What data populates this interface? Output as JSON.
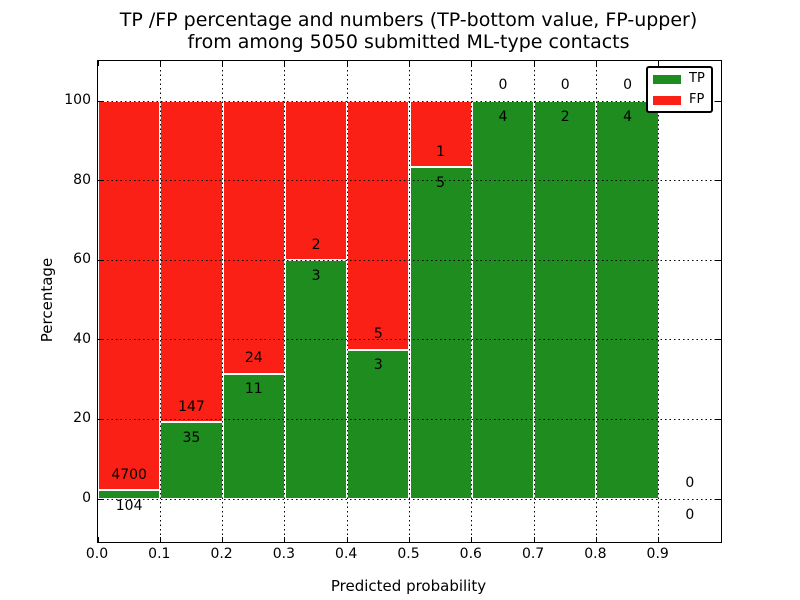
{
  "chart_data": {
    "type": "bar",
    "variant": "stacked-percentage-histogram",
    "title_line1": "TP /FP percentage and numbers (TP-bottom value, FP-upper)",
    "title_line2": "from among 5050 submitted ML-type contacts",
    "xlabel": "Predicted probability",
    "ylabel": "Percentage",
    "xlim": [
      0.0,
      1.0
    ],
    "ylim": [
      -10.8,
      110.05
    ],
    "bin_width": 0.1,
    "bin_starts": [
      0.0,
      0.1,
      0.2,
      0.3,
      0.4,
      0.5,
      0.6,
      0.7,
      0.8,
      0.9
    ],
    "xtick_labels": [
      "0.0",
      "0.1",
      "0.2",
      "0.3",
      "0.4",
      "0.5",
      "0.6",
      "0.7",
      "0.8",
      "0.9"
    ],
    "yticks": [
      0,
      20,
      40,
      60,
      80,
      100
    ],
    "grid": "dotted",
    "total_contacts": 5050,
    "series": [
      {
        "name": "TP",
        "color": "#1e8c1e",
        "counts": [
          104,
          35,
          11,
          3,
          3,
          5,
          4,
          2,
          4,
          0
        ]
      },
      {
        "name": "FP",
        "color": "#fa2015",
        "counts": [
          4700,
          147,
          24,
          2,
          5,
          1,
          0,
          0,
          0,
          0
        ]
      }
    ],
    "tp_percent_of_bin": [
      2.2,
      19.2,
      31.4,
      60.0,
      37.5,
      83.3,
      100.0,
      100.0,
      100.0,
      null
    ],
    "legend": {
      "position": "upper right",
      "entries": [
        "TP",
        "FP"
      ]
    },
    "label_rule": "FP count printed above green top, TP count printed below green top, per bin"
  }
}
